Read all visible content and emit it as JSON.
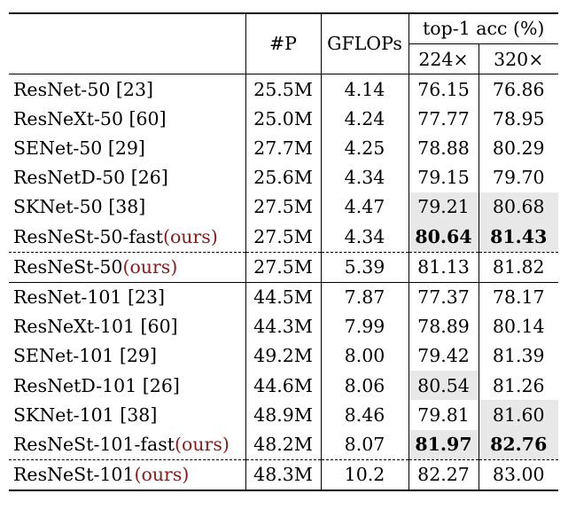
{
  "table": {
    "headers": {
      "params": "#P",
      "gflops": "GFLOPs",
      "acc_group": "top-1 acc (%)",
      "res224": "224×",
      "res320": "320×"
    },
    "rows_group1": [
      {
        "name": "ResNet-50 [23]",
        "ours": "",
        "params": "25.5M",
        "gflops": "4.14",
        "acc224": "76.15",
        "acc320": "76.86"
      },
      {
        "name": "ResNeXt-50 [60]",
        "ours": "",
        "params": "25.0M",
        "gflops": "4.24",
        "acc224": "77.77",
        "acc320": "78.95"
      },
      {
        "name": "SENet-50 [29]",
        "ours": "",
        "params": "27.7M",
        "gflops": "4.25",
        "acc224": "78.88",
        "acc320": "80.29"
      },
      {
        "name": "ResNetD-50 [26]",
        "ours": "",
        "params": "25.6M",
        "gflops": "4.34",
        "acc224": "79.15",
        "acc320": "79.70"
      },
      {
        "name": "SKNet-50 [38]",
        "ours": "",
        "params": "27.5M",
        "gflops": "4.47",
        "acc224": "79.21",
        "acc320": "80.68"
      },
      {
        "name": "ResNeSt-50-fast",
        "ours": "(ours)",
        "params": "27.5M",
        "gflops": "4.34",
        "acc224": "80.64",
        "acc320": "81.43"
      },
      {
        "name": "ResNeSt-50",
        "ours": "(ours)",
        "params": "27.5M",
        "gflops": "5.39",
        "acc224": "81.13",
        "acc320": "81.82"
      }
    ],
    "rows_group2": [
      {
        "name": "ResNet-101 [23]",
        "ours": "",
        "params": "44.5M",
        "gflops": "7.87",
        "acc224": "77.37",
        "acc320": "78.17"
      },
      {
        "name": "ResNeXt-101 [60]",
        "ours": "",
        "params": "44.3M",
        "gflops": "7.99",
        "acc224": "78.89",
        "acc320": "80.14"
      },
      {
        "name": "SENet-101 [29]",
        "ours": "",
        "params": "49.2M",
        "gflops": "8.00",
        "acc224": "79.42",
        "acc320": "81.39"
      },
      {
        "name": "ResNetD-101 [26]",
        "ours": "",
        "params": "44.6M",
        "gflops": "8.06",
        "acc224": "80.54",
        "acc320": "81.26"
      },
      {
        "name": "SKNet-101 [38]",
        "ours": "",
        "params": "48.9M",
        "gflops": "8.46",
        "acc224": "79.81",
        "acc320": "81.60"
      },
      {
        "name": "ResNeSt-101-fast",
        "ours": "(ours)",
        "params": "48.2M",
        "gflops": "8.07",
        "acc224": "81.97",
        "acc320": "82.76"
      },
      {
        "name": "ResNeSt-101",
        "ours": "(ours)",
        "params": "48.3M",
        "gflops": "10.2",
        "acc224": "82.27",
        "acc320": "83.00"
      }
    ]
  },
  "colors": {
    "ours": "#8b1a1a",
    "highlight": "#e8e8e8"
  }
}
